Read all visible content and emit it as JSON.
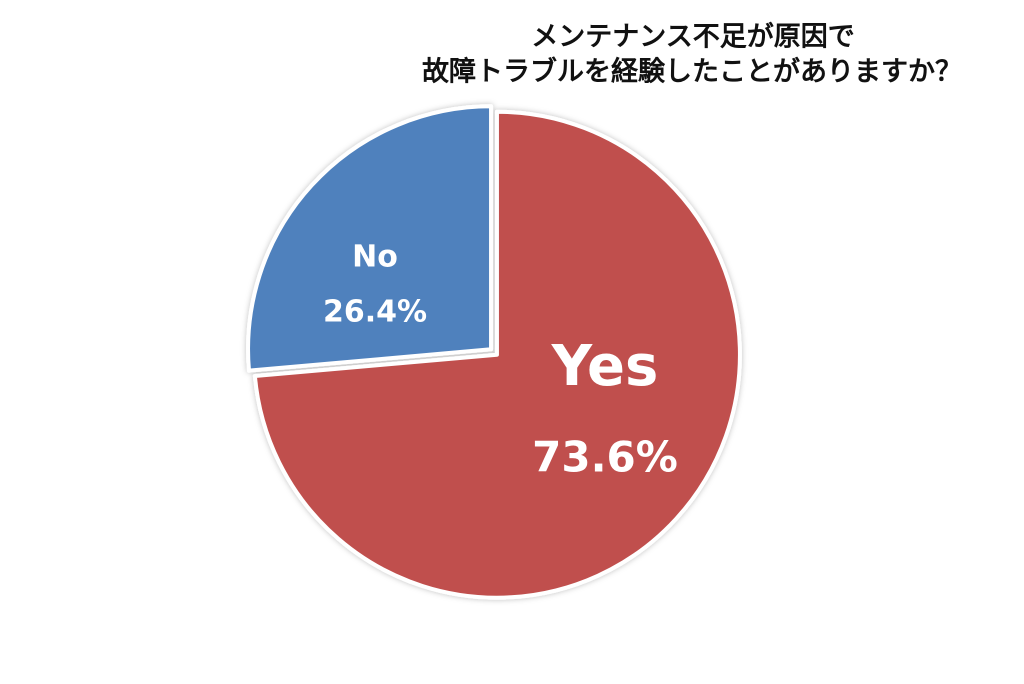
{
  "chart_data": {
    "type": "pie",
    "title": [
      "メンテナンス不足が原因で",
      "故障トラブルを経験したことがありますか？"
    ],
    "categories": [
      "Yes",
      "No"
    ],
    "values": [
      73.6,
      26.4
    ],
    "value_labels": [
      "73.6%",
      "26.4%"
    ],
    "colors": [
      "#c0504d",
      "#4f81bd"
    ]
  }
}
